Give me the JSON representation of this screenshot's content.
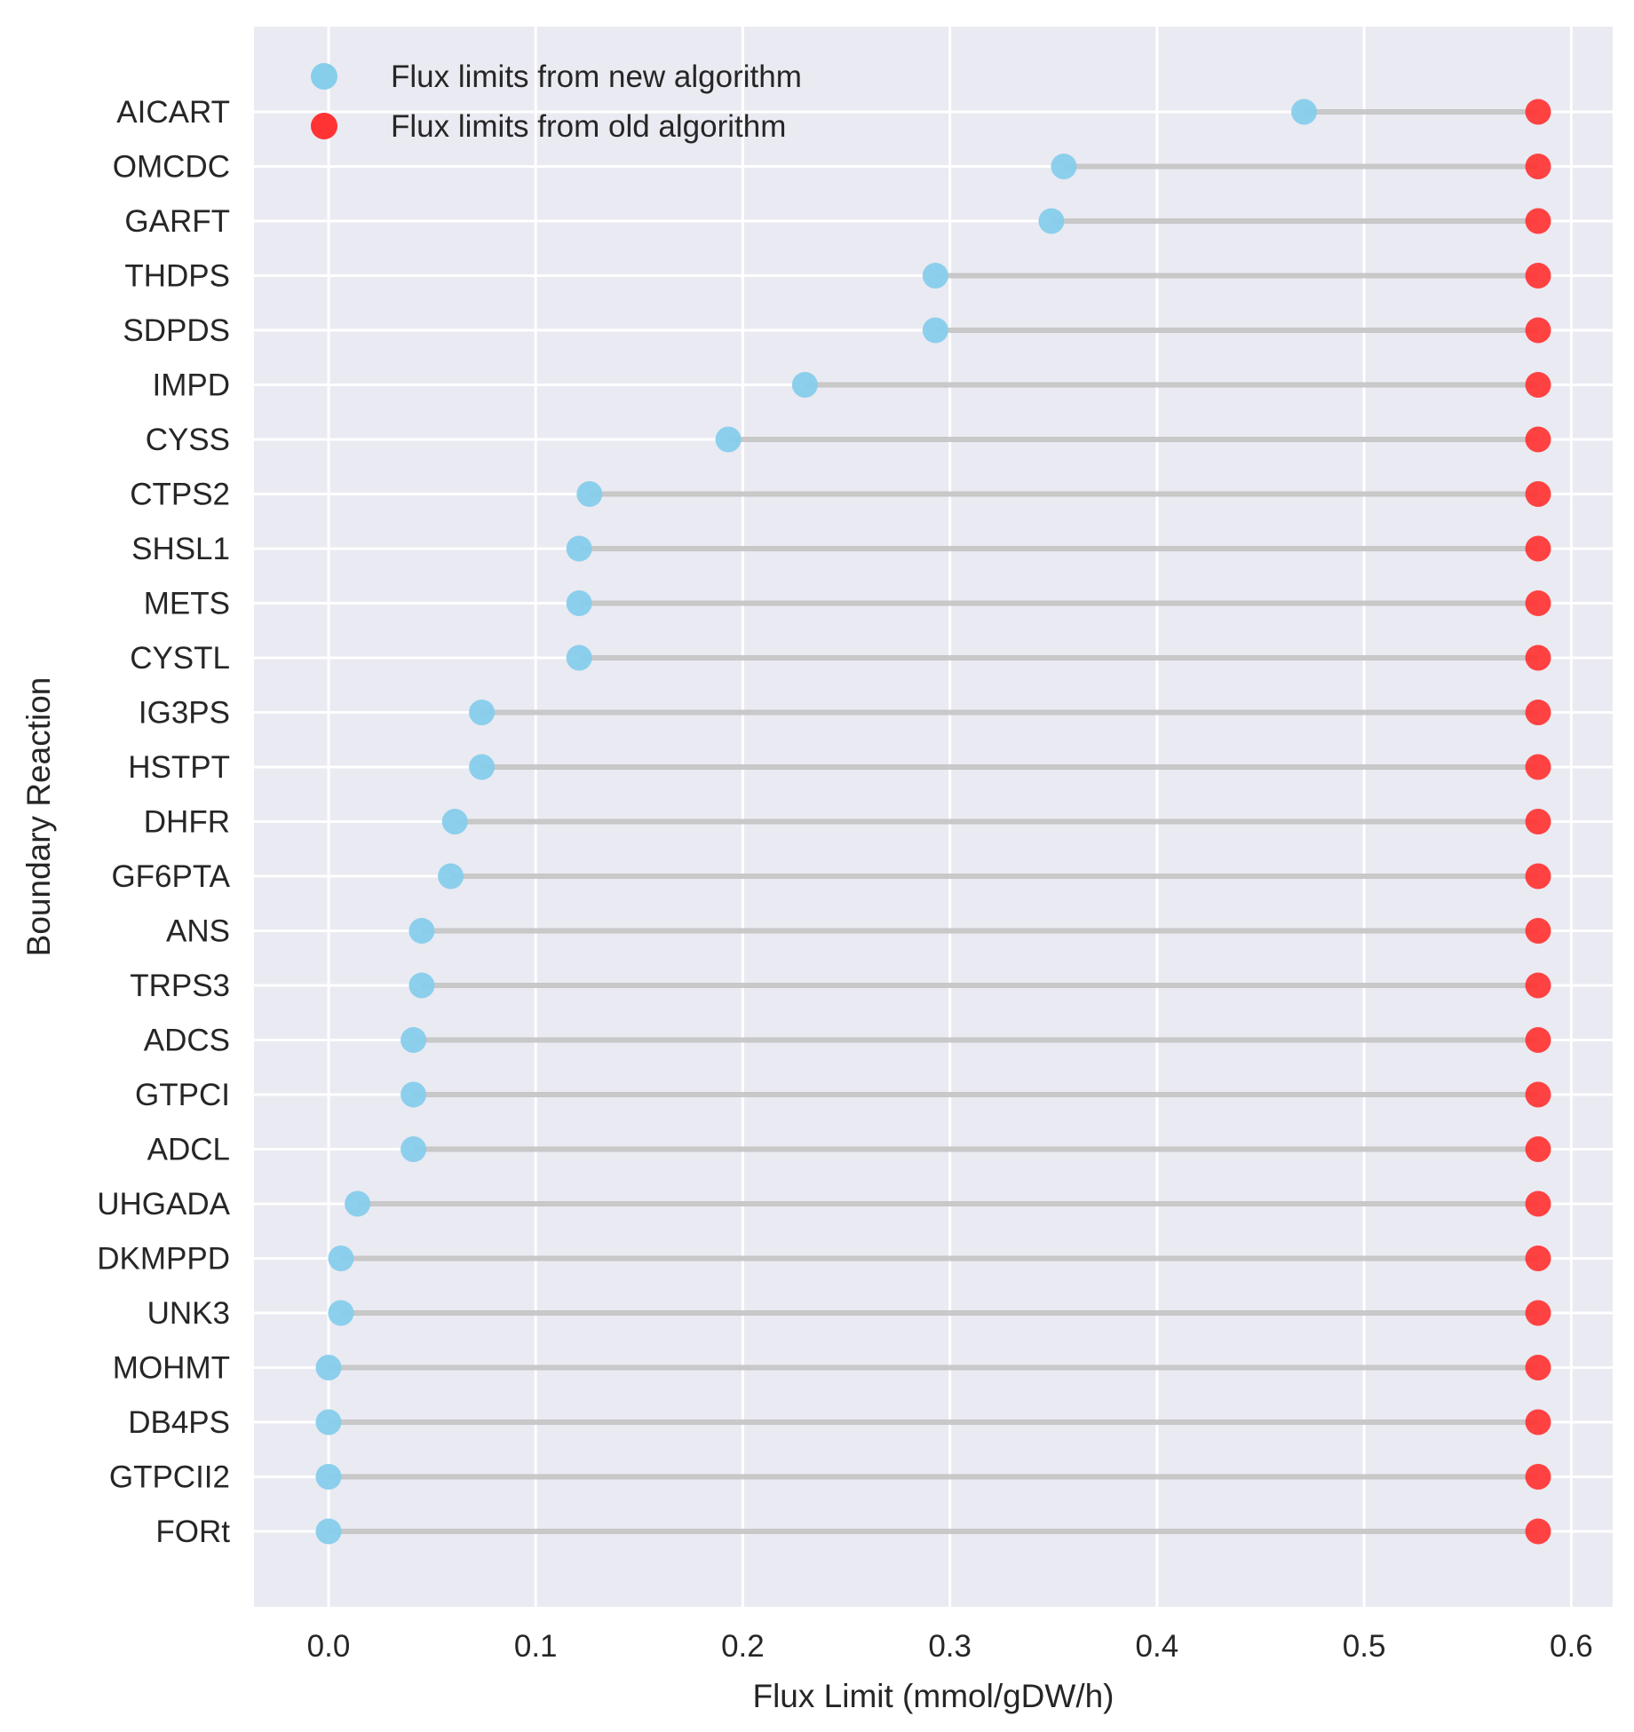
{
  "chart_data": {
    "type": "dumbbell",
    "title": "",
    "xlabel": "Flux Limit (mmol/gDW/h)",
    "ylabel": "Boundary Reaction",
    "xlim": [
      -0.036,
      0.62
    ],
    "xticks": [
      0.0,
      0.1,
      0.2,
      0.3,
      0.4,
      0.5,
      0.6
    ],
    "xtick_labels": [
      "0.0",
      "0.1",
      "0.2",
      "0.3",
      "0.4",
      "0.5",
      "0.6"
    ],
    "grid": true,
    "legend_position": "top-left",
    "categories": [
      "AICART",
      "OMCDC",
      "GARFT",
      "THDPS",
      "SDPDS",
      "IMPD",
      "CYSS",
      "CTPS2",
      "SHSL1",
      "METS",
      "CYSTL",
      "IG3PS",
      "HSTPT",
      "DHFR",
      "GF6PTA",
      "ANS",
      "TRPS3",
      "ADCS",
      "GTPCI",
      "ADCL",
      "UHGADA",
      "DKMPPD",
      "UNK3",
      "MOHMT",
      "DB4PS",
      "GTPCII2",
      "FORt"
    ],
    "series": [
      {
        "name": "Flux limits from new algorithm",
        "color": "#87ceeb",
        "values": [
          0.471,
          0.355,
          0.349,
          0.293,
          0.293,
          0.23,
          0.193,
          0.126,
          0.121,
          0.121,
          0.121,
          0.074,
          0.074,
          0.061,
          0.059,
          0.045,
          0.045,
          0.041,
          0.041,
          0.041,
          0.014,
          0.006,
          0.006,
          0.0,
          0.0,
          0.0,
          0.0
        ]
      },
      {
        "name": "Flux limits from old algorithm",
        "color": "#ff3333",
        "values": [
          0.584,
          0.584,
          0.584,
          0.584,
          0.584,
          0.584,
          0.584,
          0.584,
          0.584,
          0.584,
          0.584,
          0.584,
          0.584,
          0.584,
          0.584,
          0.584,
          0.584,
          0.584,
          0.584,
          0.584,
          0.584,
          0.584,
          0.584,
          0.584,
          0.584,
          0.584,
          0.584
        ]
      }
    ],
    "colors": {
      "plot_background": "#eaeaf2",
      "grid": "#ffffff",
      "connector": "#c0c0c0"
    }
  }
}
